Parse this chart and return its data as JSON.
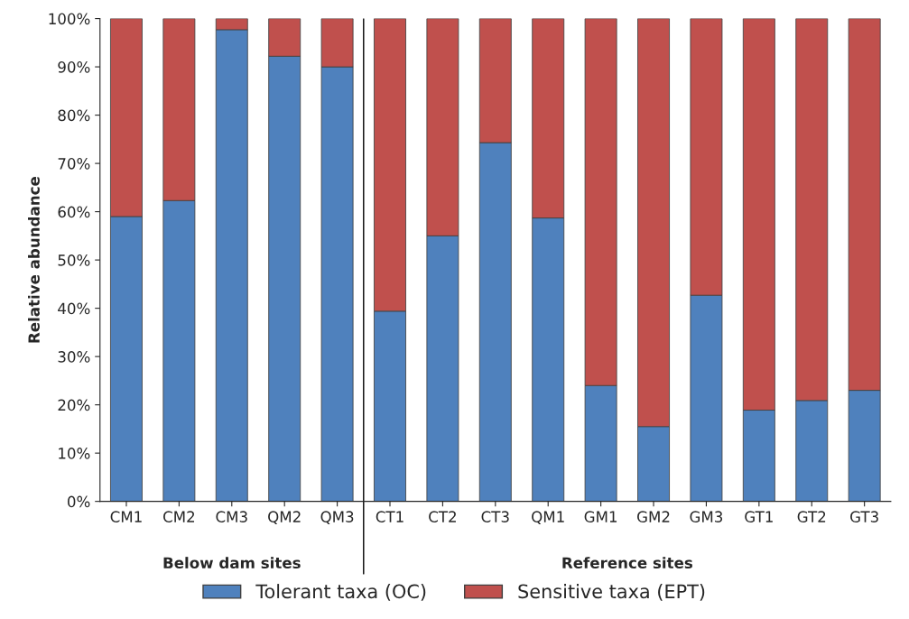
{
  "chart_data": {
    "type": "bar",
    "stacked": true,
    "ylabel": "Relative abundance",
    "categories": [
      "CM1",
      "CM2",
      "CM3",
      "QM2",
      "QM3",
      "CT1",
      "CT2",
      "CT3",
      "QM1",
      "GM1",
      "GM2",
      "GM3",
      "GT1",
      "GT2",
      "GT3"
    ],
    "series": [
      {
        "name": "Tolerant taxa (OC)",
        "color": "#4f81bd",
        "values": [
          59,
          62.3,
          97.7,
          92.2,
          90,
          39.4,
          55,
          74.3,
          58.7,
          24,
          15.5,
          42.7,
          18.9,
          20.9,
          23
        ]
      },
      {
        "name": "Sensitive taxa (EPT)",
        "color": "#c0504d",
        "values": [
          41,
          37.7,
          2.3,
          7.8,
          10,
          60.6,
          45,
          25.7,
          41.3,
          76,
          84.5,
          57.3,
          81.1,
          79.1,
          77
        ]
      }
    ],
    "ylim": [
      0,
      100
    ],
    "yticks": [
      {
        "value": 0,
        "label": "0%"
      },
      {
        "value": 10,
        "label": "10%"
      },
      {
        "value": 20,
        "label": "20%"
      },
      {
        "value": 30,
        "label": "30%"
      },
      {
        "value": 40,
        "label": "40%"
      },
      {
        "value": 50,
        "label": "50%"
      },
      {
        "value": 60,
        "label": "60%"
      },
      {
        "value": 70,
        "label": "70%"
      },
      {
        "value": 80,
        "label": "80%"
      },
      {
        "value": 90,
        "label": "90%"
      },
      {
        "value": 100,
        "label": "100%"
      }
    ],
    "annotations": [
      "Below dam sites",
      "Reference sites"
    ],
    "grid": false,
    "legend": "bottom"
  }
}
